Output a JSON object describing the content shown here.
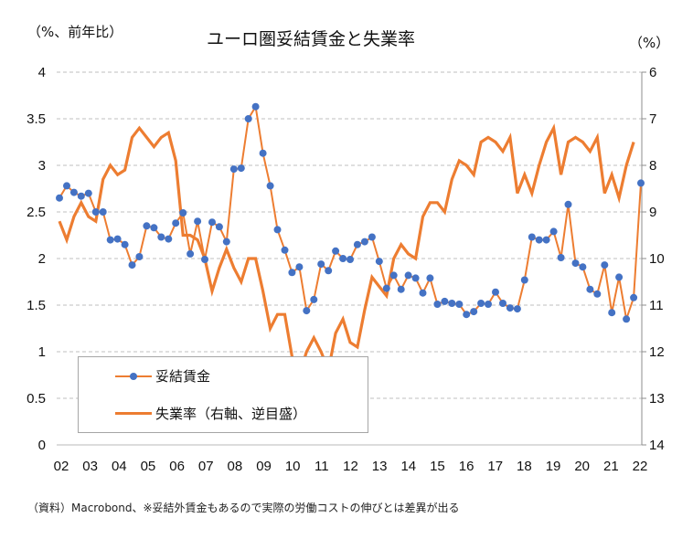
{
  "header": {
    "title": "ユーロ圏妥結賃金と失業率",
    "left_unit": "（%、前年比）",
    "right_unit": "（%）"
  },
  "footer": {
    "source": "（資料）Macrobond、※妥結外賃金もあるので実際の労働コストの伸びとは差異が出る"
  },
  "legend": {
    "items": [
      {
        "label": "妥結賃金"
      },
      {
        "label": "失業率（右軸、逆目盛）"
      }
    ]
  },
  "colors": {
    "wage_line": "#ed7d31",
    "wage_marker": "#4472c4",
    "unemployment_line": "#ed7d31",
    "grid": "#bfbfbf"
  },
  "chart_data": {
    "type": "line",
    "title": "ユーロ圏妥結賃金と失業率",
    "xlabel": "",
    "ylabel": "（%、前年比）",
    "y2label": "（%）",
    "x_tick_labels": [
      "02",
      "03",
      "04",
      "05",
      "06",
      "07",
      "08",
      "09",
      "10",
      "11",
      "12",
      "13",
      "14",
      "15",
      "16",
      "17",
      "18",
      "19",
      "20",
      "21",
      "22"
    ],
    "ylim": [
      0,
      4
    ],
    "y_ticks": [
      "0",
      "0.5",
      "1",
      "1.5",
      "2",
      "2.5",
      "3",
      "3.5",
      "4"
    ],
    "y2lim": [
      6,
      14
    ],
    "y2_inverted": true,
    "y2_ticks": [
      "6",
      "7",
      "8",
      "9",
      "10",
      "11",
      "12",
      "13",
      "14"
    ],
    "grid": true,
    "legend_position": "bottom-left",
    "x_start_year": 2002,
    "x_step": 0.25,
    "series": [
      {
        "name": "妥結賃金",
        "axis": "left",
        "markers": true,
        "values": [
          2.65,
          2.78,
          2.71,
          2.67,
          2.7,
          2.5,
          2.5,
          2.2,
          2.21,
          2.15,
          1.93,
          2.02,
          2.35,
          2.33,
          2.23,
          2.21,
          2.38,
          2.49,
          2.05,
          2.4,
          1.99,
          2.39,
          2.34,
          2.18,
          2.96,
          2.97,
          3.5,
          3.63,
          3.13,
          2.78,
          2.31,
          2.09,
          1.85,
          1.91,
          1.44,
          1.56,
          1.94,
          1.87,
          2.08,
          2.0,
          1.99,
          2.15,
          2.18,
          2.23,
          1.97,
          1.68,
          1.82,
          1.67,
          1.82,
          1.79,
          1.63,
          1.79,
          1.51,
          1.54,
          1.52,
          1.51,
          1.4,
          1.43,
          1.52,
          1.51,
          1.64,
          1.52,
          1.47,
          1.46,
          1.77,
          2.23,
          2.2,
          2.2,
          2.29,
          2.01,
          2.58,
          1.95,
          1.91,
          1.67,
          1.62,
          1.93,
          1.42,
          1.8,
          1.35,
          1.58,
          2.81
        ]
      },
      {
        "name": "失業率（右軸、逆目盛）",
        "axis": "right",
        "markers": false,
        "values": [
          9.2,
          9.6,
          9.1,
          8.8,
          9.1,
          9.2,
          8.3,
          8.0,
          8.2,
          8.1,
          7.4,
          7.2,
          7.4,
          7.6,
          7.4,
          7.3,
          7.9,
          9.5,
          9.5,
          9.6,
          10.0,
          10.7,
          10.2,
          9.8,
          10.2,
          10.5,
          10.0,
          10.0,
          10.7,
          11.5,
          11.2,
          11.2,
          12.1,
          12.5,
          12.0,
          11.7,
          12.0,
          12.4,
          11.6,
          11.3,
          11.8,
          11.9,
          11.1,
          10.4,
          10.6,
          10.8,
          10.0,
          9.7,
          9.9,
          10.0,
          9.1,
          8.8,
          8.8,
          9.0,
          8.3,
          7.9,
          8.0,
          8.2,
          7.5,
          7.4,
          7.5,
          7.7,
          7.4,
          8.6,
          8.2,
          8.6,
          8.0,
          7.5,
          7.2,
          8.2,
          7.5,
          7.4,
          7.5,
          7.7,
          7.4,
          8.6,
          8.2,
          8.7,
          8.0,
          7.5
        ]
      }
    ]
  }
}
